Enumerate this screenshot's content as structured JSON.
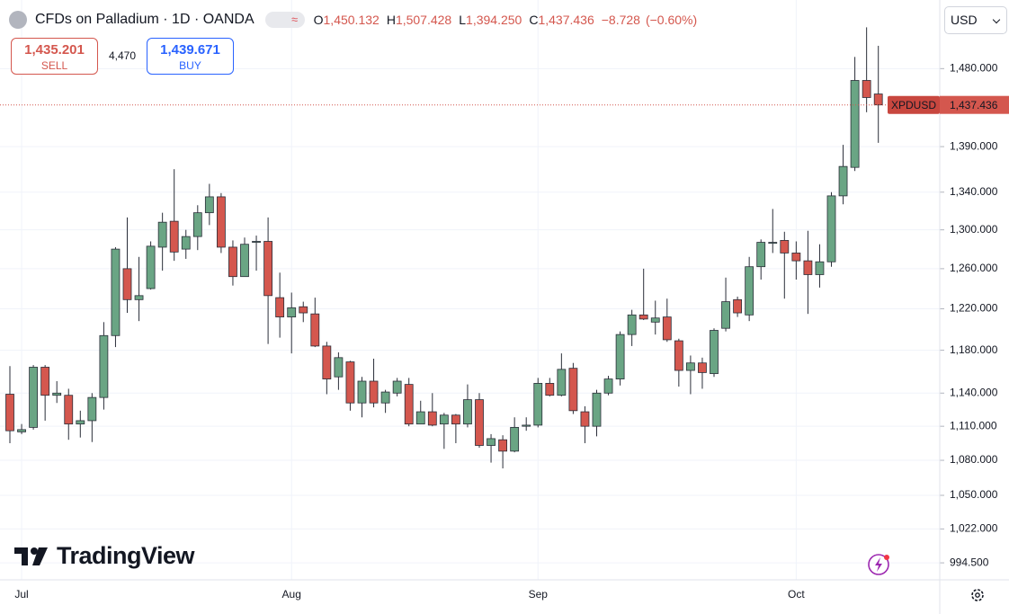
{
  "chart_data": {
    "type": "candlestick",
    "title": "CFDs on Palladium · 1D · OANDA",
    "ohlc_header": [
      {
        "label": "O",
        "value": "1,450.132"
      },
      {
        "label": "H",
        "value": "1,507.428"
      },
      {
        "label": "L",
        "value": "1,394.250"
      },
      {
        "label": "C",
        "value": "1,437.436"
      }
    ],
    "change": "−8.728",
    "change_pct": "(−0.60%)",
    "sell": {
      "price": "1,435.201",
      "label": "SELL"
    },
    "spread": "4,470",
    "buy": {
      "price": "1,439.671",
      "label": "BUY"
    },
    "currency": "USD",
    "symbol_label": "XPDUSD",
    "last_price": {
      "value": 1437.436,
      "label": "1,437.436"
    },
    "brand": "TradingView",
    "log_scale": true,
    "grid": true,
    "up_color": "#6aa584",
    "down_color": "#d4574e",
    "categories": [
      null,
      "Jul",
      null,
      null,
      null,
      null,
      null,
      null,
      null,
      null,
      null,
      null,
      null,
      null,
      null,
      null,
      null,
      null,
      null,
      null,
      null,
      null,
      null,
      null,
      "Aug",
      null,
      null,
      null,
      null,
      null,
      null,
      null,
      null,
      null,
      null,
      null,
      null,
      null,
      null,
      null,
      null,
      null,
      null,
      null,
      null,
      "Sep",
      null,
      null,
      null,
      null,
      null,
      null,
      null,
      null,
      null,
      null,
      null,
      null,
      null,
      null,
      null,
      null,
      null,
      null,
      null,
      null,
      null,
      "Oct",
      null,
      null,
      null,
      null,
      null,
      null,
      null
    ],
    "open": [
      1139,
      1105,
      1109,
      1164,
      1138,
      1138,
      1112,
      1115,
      1136,
      1194,
      1260,
      1229,
      1240,
      1282,
      1309,
      1280,
      1293,
      1318,
      1335,
      1282,
      1252,
      1287,
      1288,
      1231,
      1212,
      1222,
      1215,
      1184,
      1155,
      1169,
      1131,
      1151,
      1131,
      1140,
      1148,
      1112,
      1123,
      1112,
      1120,
      1112,
      1134,
      1093,
      1098,
      1088,
      1110,
      1111,
      1149,
      1138,
      1163,
      1123,
      1110,
      1140,
      1153,
      1195,
      1214,
      1207,
      1212,
      1189,
      1161,
      1168,
      1158,
      1201,
      1229,
      1214,
      1262,
      1286,
      1289,
      1276,
      1268,
      1254,
      1267,
      1336,
      1367,
      1466,
      1450.132
    ],
    "high": [
      1165,
      1112,
      1166,
      1166,
      1151,
      1144,
      1124,
      1140,
      1207,
      1282,
      1313,
      1272,
      1288,
      1318,
      1365,
      1300,
      1326,
      1349,
      1339,
      1289,
      1292,
      1294,
      1313,
      1256,
      1236,
      1227,
      1231,
      1188,
      1178,
      1170,
      1155,
      1172,
      1143,
      1154,
      1154,
      1133,
      1140,
      1122,
      1121,
      1148,
      1140,
      1103,
      1102,
      1118,
      1118,
      1154,
      1154,
      1177,
      1168,
      1128,
      1143,
      1156,
      1198,
      1219,
      1260,
      1228,
      1230,
      1191,
      1175,
      1173,
      1201,
      1251,
      1232,
      1272,
      1290,
      1322,
      1298,
      1288,
      1299,
      1285,
      1340,
      1392,
      1494,
      1530,
      1507.428
    ],
    "low": [
      1095,
      1103,
      1107,
      1115,
      1131,
      1098,
      1100,
      1096,
      1125,
      1183,
      1216,
      1208,
      1239,
      1258,
      1268,
      1270,
      1279,
      1305,
      1276,
      1243,
      1252,
      1258,
      1186,
      1192,
      1177,
      1207,
      1183,
      1139,
      1143,
      1124,
      1118,
      1127,
      1122,
      1137,
      1110,
      1112,
      1110,
      1090,
      1095,
      1109,
      1091,
      1078,
      1073,
      1087,
      1106,
      1109,
      1137,
      1137,
      1121,
      1095,
      1101,
      1138,
      1147,
      1184,
      1209,
      1195,
      1188,
      1146,
      1139,
      1144,
      1155,
      1198,
      1212,
      1208,
      1249,
      1276,
      1230,
      1249,
      1215,
      1241,
      1262,
      1327,
      1363,
      1429,
      1394.25
    ],
    "close": [
      1106,
      1107,
      1164,
      1138,
      1140,
      1112,
      1115,
      1136,
      1194,
      1280,
      1229,
      1233,
      1283,
      1308,
      1277,
      1293,
      1318,
      1335,
      1282,
      1252,
      1285,
      1288,
      1233,
      1212,
      1221,
      1216,
      1184,
      1153,
      1173,
      1131,
      1151,
      1131,
      1141,
      1151,
      1112,
      1123,
      1111,
      1120,
      1112,
      1134,
      1093,
      1099,
      1088,
      1109,
      1111,
      1149,
      1138,
      1162,
      1124,
      1110,
      1140,
      1153,
      1195,
      1214,
      1210,
      1211,
      1190,
      1161,
      1168,
      1159,
      1199,
      1227,
      1216,
      1262,
      1287,
      1287,
      1276,
      1268,
      1254,
      1267,
      1336,
      1368,
      1466,
      1446,
      1437.436
    ],
    "ylim": [
      981,
      1564
    ],
    "yticks": [
      {
        "value": 994.5,
        "label": "994.500"
      },
      {
        "value": 1022,
        "label": "1,022.000"
      },
      {
        "value": 1050,
        "label": "1,050.000"
      },
      {
        "value": 1080,
        "label": "1,080.000"
      },
      {
        "value": 1110,
        "label": "1,110.000"
      },
      {
        "value": 1140,
        "label": "1,140.000"
      },
      {
        "value": 1180,
        "label": "1,180.000"
      },
      {
        "value": 1220,
        "label": "1,220.000"
      },
      {
        "value": 1260,
        "label": "1,260.000"
      },
      {
        "value": 1300,
        "label": "1,300.000"
      },
      {
        "value": 1340,
        "label": "1,340.000"
      },
      {
        "value": 1390,
        "label": "1,390.000"
      },
      {
        "value": 1480,
        "label": "1,480.000"
      }
    ]
  }
}
